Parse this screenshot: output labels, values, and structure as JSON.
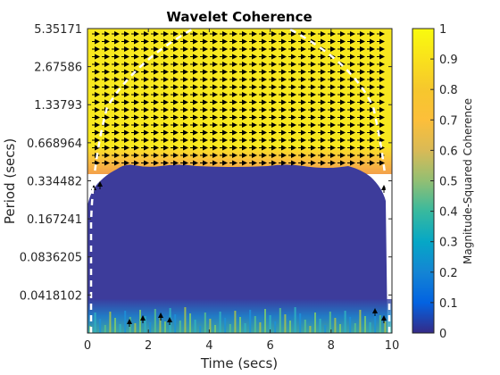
{
  "chart_data": {
    "type": "heatmap",
    "title": "Wavelet Coherence",
    "xlabel": "Time (secs)",
    "ylabel": "Period (secs)",
    "xlim": [
      0,
      10
    ],
    "x_ticks": [
      "0",
      "2",
      "4",
      "6",
      "8",
      "10"
    ],
    "y_scale": "log2",
    "ylim": [
      0.0209,
      5.35171
    ],
    "y_ticks": [
      "5.35171",
      "2.67586",
      "1.33793",
      "0.668964",
      "0.334482",
      "0.167241",
      "0.0836205",
      "0.0418102"
    ],
    "colorbar": {
      "label": "Magnitude-Squared Coherence",
      "range": [
        0,
        1
      ],
      "ticks": [
        "0",
        "0.1",
        "0.2",
        "0.3",
        "0.4",
        "0.5",
        "0.6",
        "0.7",
        "0.8",
        "0.9",
        "1"
      ],
      "colormap": "parula"
    },
    "regions": [
      {
        "period_range": [
          0.6,
          5.35171
        ],
        "coherence": 0.97,
        "phase_arrows": "pointing right (in-phase)"
      },
      {
        "period_range": [
          0.38,
          0.6
        ],
        "coherence": 0.75
      },
      {
        "period_range": [
          0.0209,
          0.38
        ],
        "coherence": 0.05
      },
      {
        "period_range": [
          0.0209,
          0.028
        ],
        "coherence": 0.3
      }
    ],
    "cone_of_influence": "white dashed line",
    "grid": false
  }
}
